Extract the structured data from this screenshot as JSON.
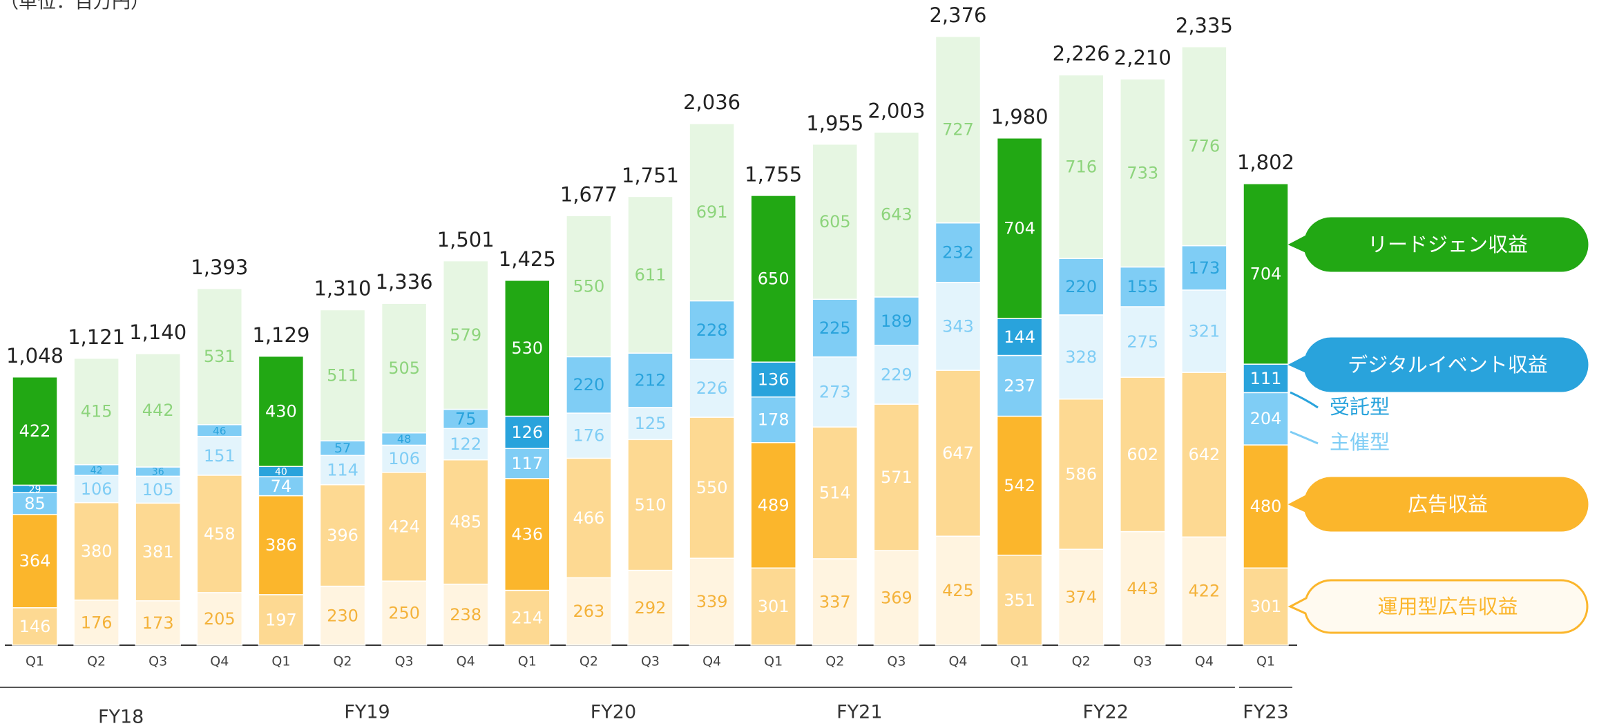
{
  "chart_data": {
    "type": "stacked_bar",
    "subtitle": "（単位：百万円）",
    "groups": [
      {
        "name": "FY18",
        "categories": [
          "Q1",
          "Q2",
          "Q3",
          "Q4"
        ]
      },
      {
        "name": "FY19",
        "categories": [
          "Q1",
          "Q2",
          "Q3",
          "Q4"
        ]
      },
      {
        "name": "FY20",
        "categories": [
          "Q1",
          "Q2",
          "Q3",
          "Q4"
        ]
      },
      {
        "name": "FY21",
        "categories": [
          "Q1",
          "Q2",
          "Q3",
          "Q4"
        ]
      },
      {
        "name": "FY22",
        "categories": [
          "Q1",
          "Q2",
          "Q3",
          "Q4"
        ]
      },
      {
        "name": "FY23",
        "categories": [
          "Q1"
        ]
      }
    ],
    "highlight": "Q1",
    "series": [
      {
        "name": "運用型広告収益",
        "color": "#fdd992",
        "dim_color": "#fff4e0",
        "label_color": "#ffffff",
        "dim_label_color": "#f4b23a",
        "values": [
          146,
          176,
          173,
          205,
          197,
          230,
          250,
          238,
          214,
          263,
          292,
          339,
          301,
          337,
          369,
          425,
          351,
          374,
          443,
          422,
          301
        ]
      },
      {
        "name": "広告収益",
        "color": "#fbb62c",
        "dim_color": "#fdd992",
        "label_color": "#ffffff",
        "dim_label_color": "#ffffff",
        "values": [
          364,
          380,
          381,
          458,
          386,
          396,
          424,
          485,
          436,
          466,
          510,
          550,
          489,
          514,
          571,
          647,
          542,
          586,
          602,
          642,
          480
        ]
      },
      {
        "name": "主催型",
        "color": "#7fcdf5",
        "dim_color": "#e3f4fc",
        "label_color": "#ffffff",
        "dim_label_color": "#7fcdf5",
        "values": [
          85,
          106,
          105,
          151,
          74,
          114,
          106,
          122,
          117,
          176,
          125,
          226,
          178,
          273,
          229,
          343,
          237,
          328,
          275,
          321,
          204
        ]
      },
      {
        "name": "受託型",
        "color": "#29a3dc",
        "dim_color": "#7fcdf5",
        "label_color": "#ffffff",
        "dim_label_color": "#29a3dc",
        "values": [
          29,
          42,
          36,
          46,
          40,
          57,
          48,
          75,
          126,
          220,
          212,
          228,
          136,
          225,
          189,
          232,
          144,
          220,
          155,
          173,
          111
        ]
      },
      {
        "name": "リードジェン収益",
        "color": "#22a814",
        "dim_color": "#e6f6e2",
        "label_color": "#ffffff",
        "dim_label_color": "#8dd47c",
        "values": [
          422,
          415,
          442,
          531,
          430,
          511,
          505,
          579,
          530,
          550,
          611,
          691,
          650,
          605,
          643,
          727,
          704,
          716,
          733,
          776,
          704
        ]
      }
    ],
    "totals": [
      1048,
      1121,
      1140,
      1393,
      1129,
      1310,
      1336,
      1501,
      1425,
      1677,
      1751,
      2036,
      1755,
      1955,
      2003,
      2376,
      1980,
      2226,
      2210,
      2335,
      1802
    ],
    "total_labels": [
      "1,048",
      "1,121",
      "1,140",
      "1,393",
      "1,129",
      "1,310",
      "1,336",
      "1,501",
      "1,425",
      "1,677",
      "1,751",
      "2,036",
      "1,755",
      "1,955",
      "2,003",
      "2,376",
      "1,980",
      "2,226",
      "2,210",
      "2,335",
      "1,802"
    ],
    "annotations": [
      "デジタルイベント収益"
    ],
    "ylim": [
      0,
      2500
    ]
  }
}
